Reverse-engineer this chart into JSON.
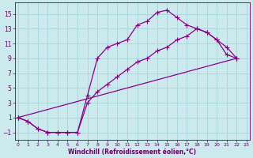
{
  "bg_color": "#cceaed",
  "line_color": "#880088",
  "grid_color": "#aad8dc",
  "xlabel": "Windchill (Refroidissement éolien,°C)",
  "xlabel_color": "#660066",
  "tick_color": "#660066",
  "ylabel_ticks": [
    -1,
    1,
    3,
    5,
    7,
    9,
    11,
    13,
    15
  ],
  "xlabel_ticks": [
    0,
    1,
    2,
    3,
    4,
    5,
    6,
    7,
    8,
    9,
    10,
    11,
    12,
    13,
    14,
    15,
    16,
    17,
    18,
    19,
    20,
    21,
    22,
    23
  ],
  "xlim": [
    -0.3,
    23.3
  ],
  "ylim": [
    -2.0,
    16.5
  ],
  "line1_x": [
    0,
    1,
    2,
    3,
    4,
    5,
    6,
    7,
    8,
    9,
    10,
    11,
    12,
    13,
    14,
    15,
    16,
    17,
    18,
    19,
    20,
    21,
    22
  ],
  "line1_y": [
    1.0,
    0.5,
    -0.5,
    -1.0,
    -1.0,
    -1.0,
    -1.0,
    4.0,
    9.0,
    10.5,
    11.0,
    11.5,
    13.5,
    14.0,
    15.2,
    15.5,
    14.5,
    13.5,
    13.0,
    12.5,
    11.5,
    10.5,
    9.0
  ],
  "line2_x": [
    0,
    1,
    2,
    3,
    4,
    5,
    6,
    7,
    8,
    9,
    10,
    11,
    12,
    13,
    14,
    15,
    16,
    17,
    18,
    19,
    20,
    21,
    22
  ],
  "line2_y": [
    1.0,
    0.5,
    -0.5,
    -1.0,
    -1.0,
    -1.0,
    -1.0,
    3.0,
    4.5,
    5.5,
    6.5,
    7.5,
    8.5,
    9.0,
    10.0,
    10.5,
    11.5,
    12.0,
    13.0,
    12.5,
    11.5,
    9.5,
    9.0
  ],
  "line3_x": [
    0,
    22
  ],
  "line3_y": [
    1.0,
    9.0
  ],
  "marker": "+",
  "markersize": 4,
  "linewidth": 0.9
}
